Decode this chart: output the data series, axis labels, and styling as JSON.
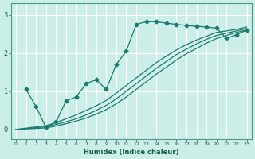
{
  "xlabel": "Humidex (Indice chaleur)",
  "bg_color": "#cceee8",
  "line_color": "#1a7a6e",
  "grid_color": "#ffffff",
  "x_ticks": [
    0,
    1,
    2,
    3,
    4,
    5,
    6,
    7,
    8,
    9,
    10,
    11,
    12,
    13,
    14,
    15,
    16,
    17,
    18,
    19,
    20,
    21,
    22,
    23
  ],
  "y_ticks": [
    0,
    1,
    2,
    3
  ],
  "ylim": [
    -0.25,
    3.3
  ],
  "xlim": [
    -0.5,
    23.5
  ],
  "line1_x": [
    1,
    2,
    3,
    4,
    5,
    6,
    7,
    8,
    9,
    10,
    11,
    12,
    13,
    14,
    15,
    16,
    17,
    18,
    19,
    20,
    21,
    22,
    23
  ],
  "line1_y": [
    1.05,
    0.6,
    0.05,
    0.2,
    0.75,
    0.85,
    1.2,
    1.3,
    1.05,
    1.7,
    2.05,
    2.75,
    2.82,
    2.82,
    2.78,
    2.75,
    2.72,
    2.7,
    2.68,
    2.65,
    2.38,
    2.48,
    2.6
  ],
  "line2_x": [
    0,
    3,
    4,
    5,
    6,
    7,
    8,
    9,
    10,
    11,
    12,
    13,
    14,
    15,
    16,
    17,
    18,
    19,
    20,
    21,
    22,
    23
  ],
  "line2_y": [
    0.0,
    0.1,
    0.18,
    0.28,
    0.38,
    0.5,
    0.62,
    0.76,
    0.95,
    1.15,
    1.35,
    1.55,
    1.75,
    1.92,
    2.08,
    2.22,
    2.34,
    2.44,
    2.54,
    2.58,
    2.62,
    2.68
  ],
  "line3_x": [
    0,
    3,
    4,
    5,
    6,
    7,
    8,
    9,
    10,
    11,
    12,
    13,
    14,
    15,
    16,
    17,
    18,
    19,
    20,
    21,
    22,
    23
  ],
  "line3_y": [
    0.0,
    0.07,
    0.13,
    0.2,
    0.28,
    0.38,
    0.5,
    0.63,
    0.8,
    1.0,
    1.2,
    1.4,
    1.6,
    1.78,
    1.96,
    2.1,
    2.24,
    2.36,
    2.46,
    2.52,
    2.58,
    2.64
  ],
  "line4_x": [
    0,
    3,
    4,
    5,
    6,
    7,
    8,
    9,
    10,
    11,
    12,
    13,
    14,
    15,
    16,
    17,
    18,
    19,
    20,
    21,
    22,
    23
  ],
  "line4_y": [
    0.0,
    0.04,
    0.09,
    0.15,
    0.22,
    0.3,
    0.4,
    0.52,
    0.67,
    0.85,
    1.05,
    1.25,
    1.45,
    1.63,
    1.82,
    1.98,
    2.12,
    2.26,
    2.38,
    2.46,
    2.54,
    2.6
  ]
}
